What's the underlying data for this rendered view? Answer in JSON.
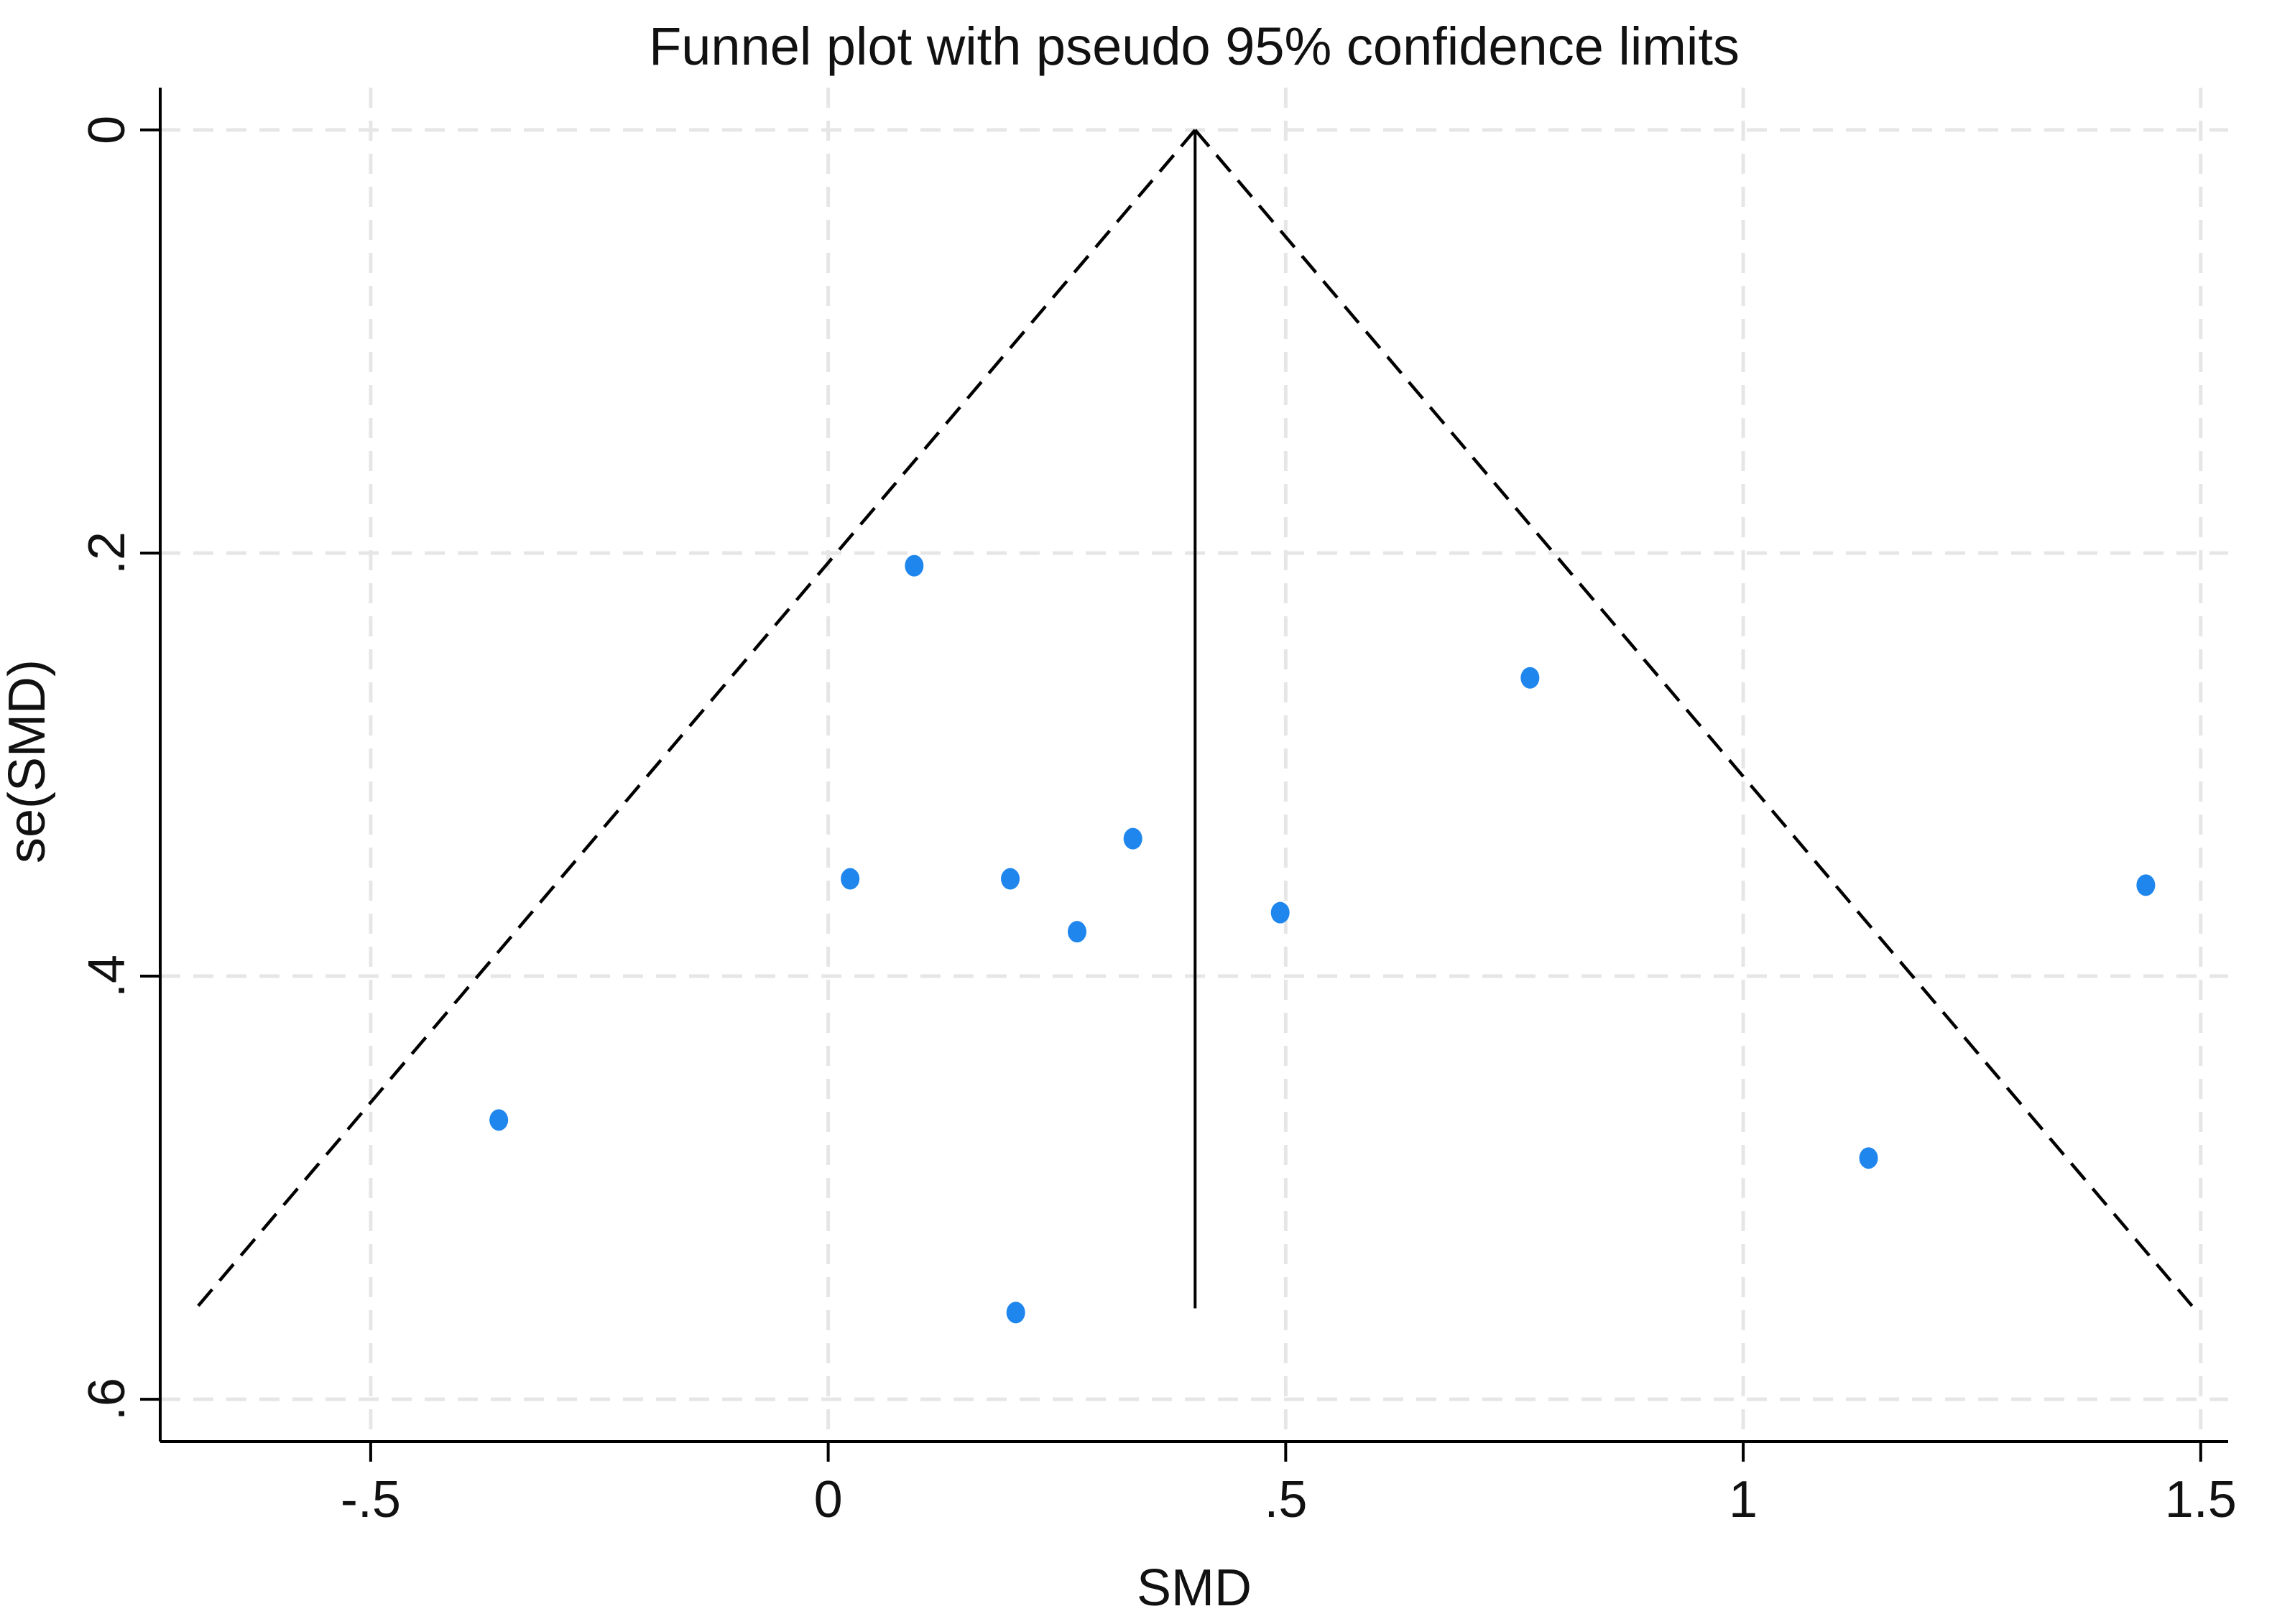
{
  "chart_data": {
    "type": "scatter",
    "title": "Funnel plot with pseudo 95% confidence limits",
    "xlabel": "SMD",
    "ylabel": "se(SMD)",
    "xlim": [
      -0.73,
      1.53
    ],
    "ylim": [
      -0.02,
      0.62
    ],
    "y_reversed": true,
    "grid": true,
    "xticks": [
      -0.5,
      0,
      0.5,
      1,
      1.5
    ],
    "xtick_labels": [
      "-.5",
      "0",
      ".5",
      "1",
      "1.5"
    ],
    "yticks": [
      0,
      0.2,
      0.4,
      0.6
    ],
    "ytick_labels": [
      "0",
      ".2",
      ".4",
      ".6"
    ],
    "pooled_effect": 0.401,
    "funnel_max_se": 0.557,
    "funnel_z": 1.96,
    "point_color": "#1f86ee",
    "points": [
      {
        "x": 0.094,
        "y": 0.206
      },
      {
        "x": 0.767,
        "y": 0.259
      },
      {
        "x": 0.024,
        "y": 0.354
      },
      {
        "x": 0.199,
        "y": 0.354
      },
      {
        "x": 0.333,
        "y": 0.335
      },
      {
        "x": 0.272,
        "y": 0.379
      },
      {
        "x": 0.494,
        "y": 0.37
      },
      {
        "x": 1.44,
        "y": 0.357
      },
      {
        "x": -0.36,
        "y": 0.468
      },
      {
        "x": 1.137,
        "y": 0.486
      },
      {
        "x": 0.205,
        "y": 0.559
      }
    ]
  }
}
